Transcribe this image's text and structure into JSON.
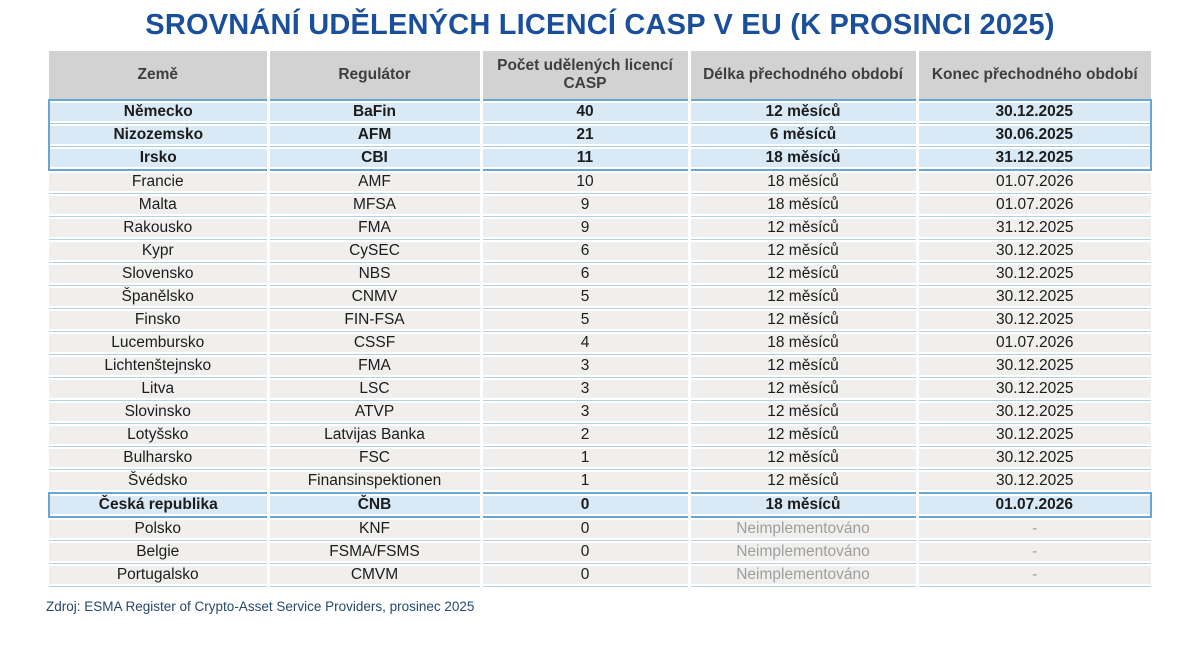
{
  "chart_data": {
    "type": "table",
    "title": "SROVNÁNÍ UDĚLENÝCH LICENCÍ CASP V EU (K PROSINCI 2025)",
    "columns": [
      "Země",
      "Regulátor",
      "Počet udělených licencí CASP",
      "Délka přechodného období",
      "Konec přechodného období"
    ],
    "rows": [
      {
        "country": "Německo",
        "regulator": "BaFin",
        "licenses": 40,
        "transition_length": "12 měsíců",
        "transition_end": "30.12.2025",
        "highlight": true,
        "section": "top3"
      },
      {
        "country": "Nizozemsko",
        "regulator": "AFM",
        "licenses": 21,
        "transition_length": "6 měsíců",
        "transition_end": "30.06.2025",
        "highlight": true,
        "section": "top3"
      },
      {
        "country": "Irsko",
        "regulator": "CBI",
        "licenses": 11,
        "transition_length": "18 měsíců",
        "transition_end": "31.12.2025",
        "highlight": true,
        "section": "top3"
      },
      {
        "country": "Francie",
        "regulator": "AMF",
        "licenses": 10,
        "transition_length": "18 měsíců",
        "transition_end": "01.07.2026",
        "highlight": false,
        "section": "mid"
      },
      {
        "country": "Malta",
        "regulator": "MFSA",
        "licenses": 9,
        "transition_length": "18 měsíců",
        "transition_end": "01.07.2026",
        "highlight": false,
        "section": "mid"
      },
      {
        "country": "Rakousko",
        "regulator": "FMA",
        "licenses": 9,
        "transition_length": "12 měsíců",
        "transition_end": "31.12.2025",
        "highlight": false,
        "section": "mid"
      },
      {
        "country": "Kypr",
        "regulator": "CySEC",
        "licenses": 6,
        "transition_length": "12 měsíců",
        "transition_end": "30.12.2025",
        "highlight": false,
        "section": "mid"
      },
      {
        "country": "Slovensko",
        "regulator": "NBS",
        "licenses": 6,
        "transition_length": "12 měsíců",
        "transition_end": "30.12.2025",
        "highlight": false,
        "section": "mid"
      },
      {
        "country": "Španělsko",
        "regulator": "CNMV",
        "licenses": 5,
        "transition_length": "12 měsíců",
        "transition_end": "30.12.2025",
        "highlight": false,
        "section": "mid"
      },
      {
        "country": "Finsko",
        "regulator": "FIN-FSA",
        "licenses": 5,
        "transition_length": "12 měsíců",
        "transition_end": "30.12.2025",
        "highlight": false,
        "section": "mid"
      },
      {
        "country": "Lucembursko",
        "regulator": "CSSF",
        "licenses": 4,
        "transition_length": "18 měsíců",
        "transition_end": "01.07.2026",
        "highlight": false,
        "section": "mid"
      },
      {
        "country": "Lichtenštejnsko",
        "regulator": "FMA",
        "licenses": 3,
        "transition_length": "12 měsíců",
        "transition_end": "30.12.2025",
        "highlight": false,
        "section": "mid"
      },
      {
        "country": "Litva",
        "regulator": "LSC",
        "licenses": 3,
        "transition_length": "12 měsíců",
        "transition_end": "30.12.2025",
        "highlight": false,
        "section": "mid"
      },
      {
        "country": "Slovinsko",
        "regulator": "ATVP",
        "licenses": 3,
        "transition_length": "12 měsíců",
        "transition_end": "30.12.2025",
        "highlight": false,
        "section": "mid"
      },
      {
        "country": "Lotyšsko",
        "regulator": "Latvijas Banka",
        "licenses": 2,
        "transition_length": "12 měsíců",
        "transition_end": "30.12.2025",
        "highlight": false,
        "section": "mid"
      },
      {
        "country": "Bulharsko",
        "regulator": "FSC",
        "licenses": 1,
        "transition_length": "12 měsíců",
        "transition_end": "30.12.2025",
        "highlight": false,
        "section": "mid"
      },
      {
        "country": "Švédsko",
        "regulator": "Finansinspektionen",
        "licenses": 1,
        "transition_length": "12 měsíců",
        "transition_end": "30.12.2025",
        "highlight": false,
        "section": "mid"
      },
      {
        "country": "Česká republika",
        "regulator": "ČNB",
        "licenses": 0,
        "transition_length": "18 měsíců",
        "transition_end": "01.07.2026",
        "highlight": true,
        "section": "czech"
      },
      {
        "country": "Polsko",
        "regulator": "KNF",
        "licenses": 0,
        "transition_length": "Neimplementováno",
        "transition_end": "-",
        "highlight": false,
        "section": "bottom"
      },
      {
        "country": "Belgie",
        "regulator": "FSMA/FSMS",
        "licenses": 0,
        "transition_length": "Neimplementováno",
        "transition_end": "-",
        "highlight": false,
        "section": "bottom"
      },
      {
        "country": "Portugalsko",
        "regulator": "CMVM",
        "licenses": 0,
        "transition_length": "Neimplementováno",
        "transition_end": "-",
        "highlight": false,
        "section": "bottom"
      }
    ],
    "source": "Zdroj: ESMA Register of Crypto-Asset Service Providers, prosinec 2025",
    "layout": {
      "legend": "none",
      "grid": "row-separators",
      "highlight_color": "#d9eaf6",
      "highlight_border": "#6aa5d4"
    }
  },
  "colors": {
    "title_text": "#1a4f9c",
    "header_bg": "#d2d2d2",
    "row_bg": "#f0efed",
    "highlight_bg": "#d9eaf6",
    "highlight_border": "#6aa5d4",
    "separator_line": "#b3d1e6",
    "muted_text": "#9e9e9e",
    "source_text": "#27496d"
  }
}
